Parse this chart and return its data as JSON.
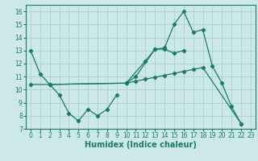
{
  "background_color": "#cce8e8",
  "line_color": "#1a7a6e",
  "grid_color": "#aed4d4",
  "xlabel": "Humidex (Indice chaleur)",
  "xlabel_fontsize": 7,
  "ylim": [
    7,
    16.5
  ],
  "xlim": [
    -0.5,
    23.5
  ],
  "yticks": [
    7,
    8,
    9,
    10,
    11,
    12,
    13,
    14,
    15,
    16
  ],
  "xticks": [
    0,
    1,
    2,
    3,
    4,
    5,
    6,
    7,
    8,
    9,
    10,
    11,
    12,
    13,
    14,
    15,
    16,
    17,
    18,
    19,
    20,
    21,
    22,
    23
  ],
  "lines": [
    {
      "x": [
        0,
        1,
        2,
        10,
        12,
        13,
        14,
        15,
        16
      ],
      "y": [
        13.0,
        11.2,
        10.4,
        10.5,
        12.2,
        13.1,
        13.1,
        12.8,
        13.0
      ]
    },
    {
      "x": [
        2,
        3,
        4,
        5,
        6,
        7,
        8,
        9
      ],
      "y": [
        10.4,
        9.6,
        8.2,
        7.6,
        8.5,
        8.0,
        8.5,
        9.6
      ]
    },
    {
      "x": [
        10,
        11,
        13,
        14,
        15,
        16,
        17,
        18,
        19,
        20,
        21,
        22
      ],
      "y": [
        10.5,
        11.0,
        13.1,
        13.2,
        15.0,
        16.0,
        14.4,
        14.6,
        11.8,
        10.5,
        8.7,
        7.4
      ]
    },
    {
      "x": [
        0,
        2,
        10,
        11,
        12,
        13,
        14,
        15,
        16,
        17,
        18,
        22
      ],
      "y": [
        10.4,
        10.4,
        10.5,
        10.65,
        10.8,
        10.95,
        11.1,
        11.25,
        11.4,
        11.55,
        11.7,
        7.4
      ]
    }
  ]
}
